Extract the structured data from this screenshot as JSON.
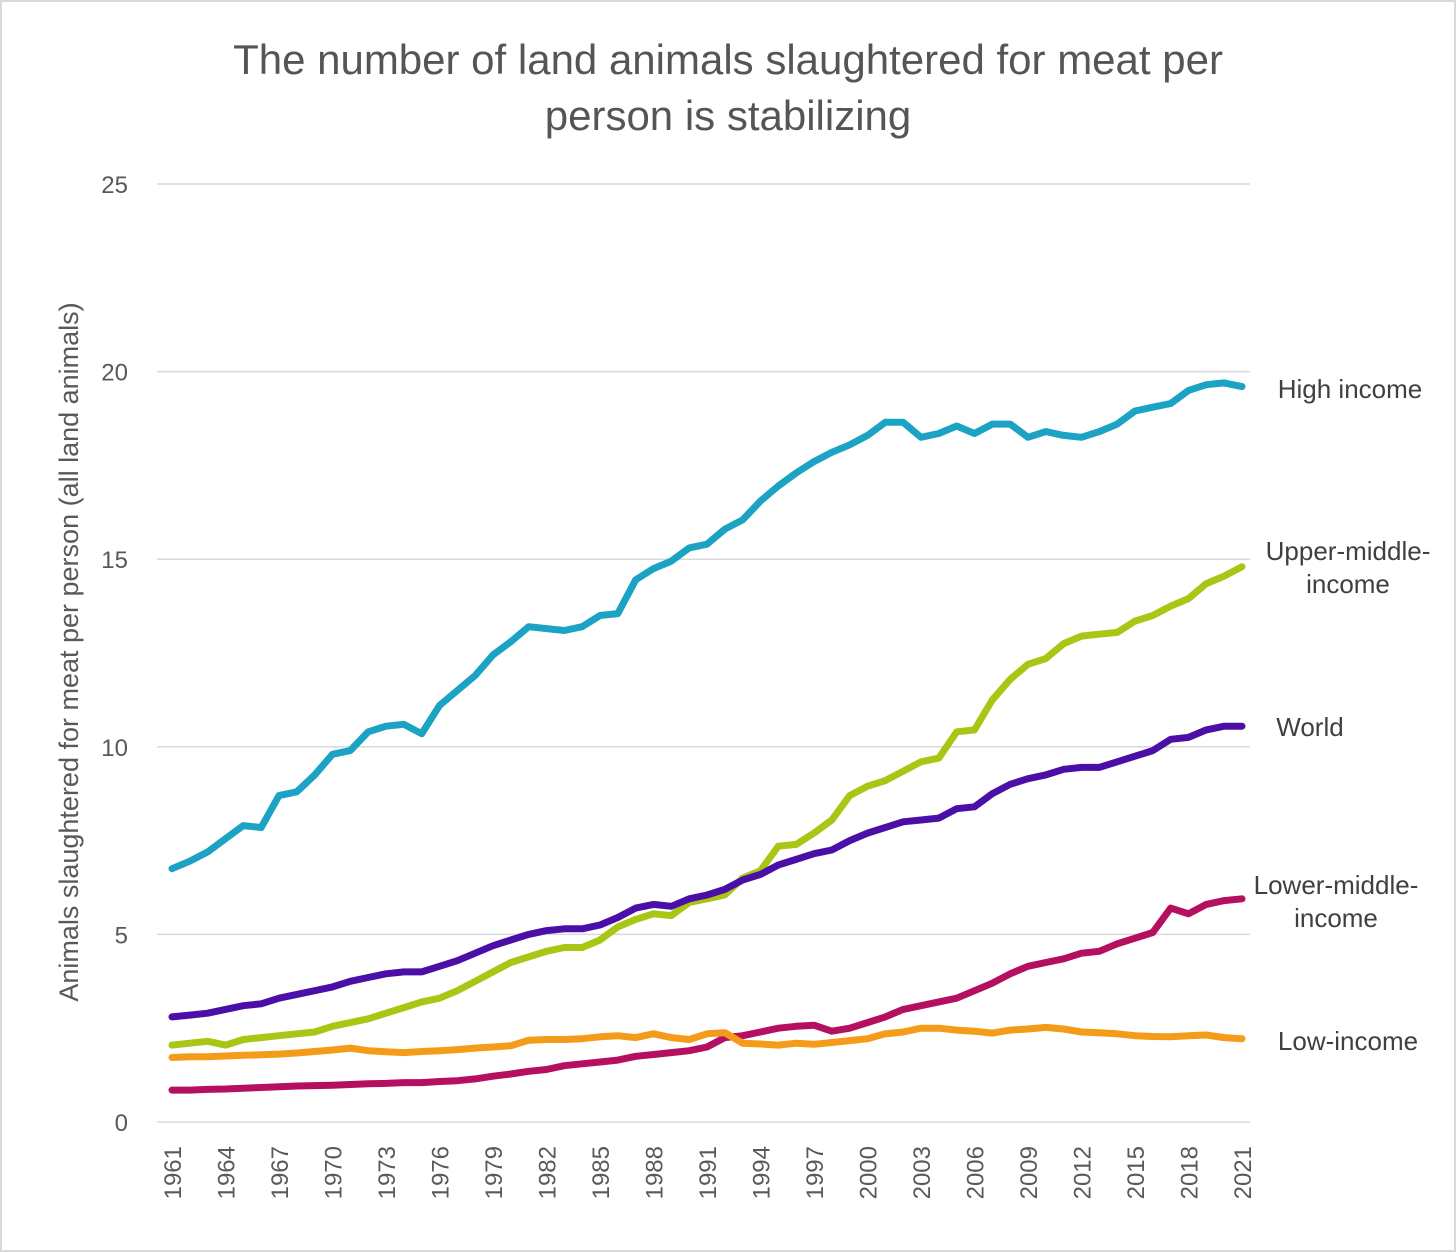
{
  "chart_data": {
    "type": "line",
    "title": [
      "The number of land animals slaughtered for meat per",
      "person is stabilizing"
    ],
    "ylabel": "Animals slaughtered for meat per person (all land animals)",
    "xlabel": "",
    "ylim": [
      0,
      25
    ],
    "yticks": [
      "0",
      "5",
      "10",
      "15",
      "20",
      "25"
    ],
    "ytick_values": [
      0,
      5,
      10,
      15,
      20,
      25
    ],
    "x_start": 1961,
    "x_end": 2021,
    "xticks": [
      "1961",
      "1964",
      "1967",
      "1970",
      "1973",
      "1976",
      "1979",
      "1982",
      "1985",
      "1988",
      "1991",
      "1994",
      "1997",
      "2000",
      "2003",
      "2006",
      "2009",
      "2012",
      "2015",
      "2018",
      "2021"
    ],
    "grid": true,
    "legend": "inline-right",
    "x": [
      1961,
      1962,
      1963,
      1964,
      1965,
      1966,
      1967,
      1968,
      1969,
      1970,
      1971,
      1972,
      1973,
      1974,
      1975,
      1976,
      1977,
      1978,
      1979,
      1980,
      1981,
      1982,
      1983,
      1984,
      1985,
      1986,
      1987,
      1988,
      1989,
      1990,
      1991,
      1992,
      1993,
      1994,
      1995,
      1996,
      1997,
      1998,
      1999,
      2000,
      2001,
      2002,
      2003,
      2004,
      2005,
      2006,
      2007,
      2008,
      2009,
      2010,
      2011,
      2012,
      2013,
      2014,
      2015,
      2016,
      2017,
      2018,
      2019,
      2020,
      2021
    ],
    "series": [
      {
        "name": "High income",
        "label_lines": [
          "High income"
        ],
        "color": "#1ca3c4",
        "values": [
          6.75,
          6.95,
          7.2,
          7.55,
          7.9,
          7.85,
          8.7,
          8.8,
          9.25,
          9.8,
          9.9,
          10.4,
          10.55,
          10.6,
          10.35,
          11.1,
          11.5,
          11.9,
          12.45,
          12.8,
          13.2,
          13.15,
          13.1,
          13.2,
          13.5,
          13.55,
          14.45,
          14.75,
          14.95,
          15.3,
          15.4,
          15.8,
          16.05,
          16.55,
          16.95,
          17.3,
          17.6,
          17.85,
          18.05,
          18.3,
          18.65,
          18.65,
          18.25,
          18.35,
          18.55,
          18.35,
          18.6,
          18.6,
          18.25,
          18.4,
          18.3,
          18.25,
          18.4,
          18.6,
          18.95,
          19.05,
          19.15,
          19.5,
          19.65,
          19.7,
          19.6
        ]
      },
      {
        "name": "Upper-middle-income",
        "label_lines": [
          "Upper-middle-",
          "income"
        ],
        "color": "#a9c614",
        "values": [
          2.05,
          2.1,
          2.15,
          2.05,
          2.2,
          2.25,
          2.3,
          2.35,
          2.4,
          2.55,
          2.65,
          2.75,
          2.9,
          3.05,
          3.2,
          3.3,
          3.5,
          3.75,
          4.0,
          4.25,
          4.4,
          4.55,
          4.65,
          4.65,
          4.85,
          5.2,
          5.4,
          5.55,
          5.5,
          5.85,
          5.95,
          6.05,
          6.5,
          6.7,
          7.35,
          7.4,
          7.7,
          8.05,
          8.7,
          8.95,
          9.1,
          9.35,
          9.6,
          9.7,
          10.4,
          10.45,
          11.25,
          11.8,
          12.2,
          12.35,
          12.75,
          12.95,
          13.0,
          13.05,
          13.35,
          13.5,
          13.75,
          13.95,
          14.35,
          14.55,
          14.8
        ]
      },
      {
        "name": "World",
        "label_lines": [
          "World"
        ],
        "color": "#4b0fa8",
        "values": [
          2.8,
          2.85,
          2.9,
          3.0,
          3.1,
          3.15,
          3.3,
          3.4,
          3.5,
          3.6,
          3.75,
          3.85,
          3.95,
          4.0,
          4.0,
          4.15,
          4.3,
          4.5,
          4.7,
          4.85,
          5.0,
          5.1,
          5.15,
          5.15,
          5.25,
          5.45,
          5.7,
          5.8,
          5.75,
          5.95,
          6.05,
          6.2,
          6.45,
          6.6,
          6.85,
          7.0,
          7.15,
          7.25,
          7.5,
          7.7,
          7.85,
          8.0,
          8.05,
          8.1,
          8.35,
          8.4,
          8.75,
          9.0,
          9.15,
          9.25,
          9.4,
          9.45,
          9.45,
          9.6,
          9.75,
          9.9,
          10.2,
          10.25,
          10.45,
          10.55,
          10.55
        ]
      },
      {
        "name": "Lower-middle-income",
        "label_lines": [
          "Lower-middle-",
          "income"
        ],
        "color": "#b5105f",
        "values": [
          0.85,
          0.85,
          0.87,
          0.88,
          0.9,
          0.92,
          0.94,
          0.96,
          0.97,
          0.98,
          1.0,
          1.02,
          1.03,
          1.05,
          1.05,
          1.08,
          1.1,
          1.15,
          1.22,
          1.28,
          1.35,
          1.4,
          1.5,
          1.55,
          1.6,
          1.65,
          1.75,
          1.8,
          1.85,
          1.9,
          2.0,
          2.25,
          2.3,
          2.4,
          2.5,
          2.55,
          2.58,
          2.42,
          2.5,
          2.65,
          2.8,
          3.0,
          3.1,
          3.2,
          3.3,
          3.5,
          3.7,
          3.95,
          4.15,
          4.25,
          4.35,
          4.5,
          4.55,
          4.75,
          4.9,
          5.05,
          5.7,
          5.55,
          5.8,
          5.9,
          5.95
        ]
      },
      {
        "name": "Low-income",
        "label_lines": [
          "Low-income"
        ],
        "color": "#f59b1a",
        "values": [
          1.72,
          1.74,
          1.74,
          1.76,
          1.78,
          1.79,
          1.81,
          1.84,
          1.88,
          1.92,
          1.97,
          1.9,
          1.87,
          1.85,
          1.88,
          1.9,
          1.93,
          1.97,
          2.0,
          2.03,
          2.18,
          2.2,
          2.2,
          2.22,
          2.27,
          2.3,
          2.25,
          2.35,
          2.25,
          2.2,
          2.35,
          2.38,
          2.1,
          2.08,
          2.05,
          2.1,
          2.07,
          2.12,
          2.17,
          2.22,
          2.35,
          2.4,
          2.5,
          2.5,
          2.45,
          2.42,
          2.37,
          2.45,
          2.48,
          2.52,
          2.48,
          2.4,
          2.38,
          2.35,
          2.3,
          2.28,
          2.27,
          2.3,
          2.32,
          2.25,
          2.22
        ]
      }
    ]
  }
}
